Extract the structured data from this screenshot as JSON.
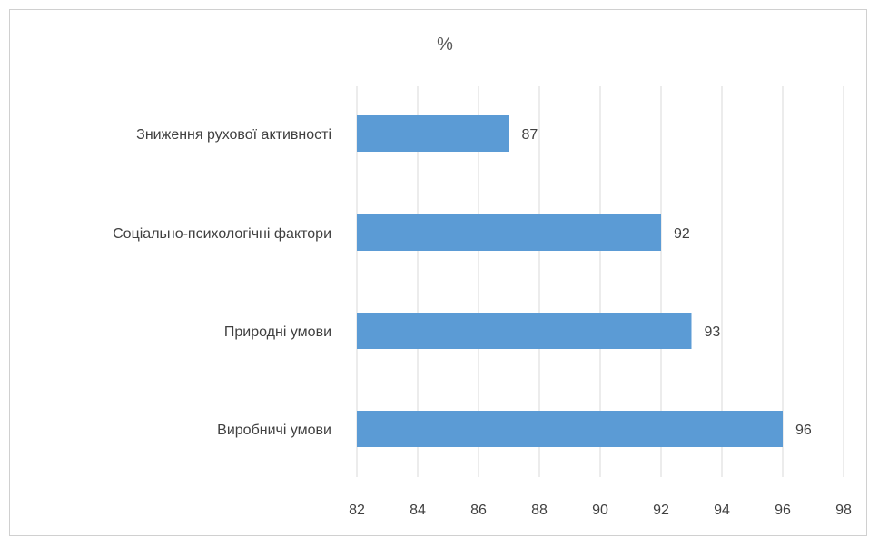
{
  "chart_data": {
    "type": "bar",
    "orientation": "horizontal",
    "title": "%",
    "categories": [
      "Зниження рухової активності",
      "Соціально-психологічні фактори",
      "Природні умови",
      "Виробничі умови"
    ],
    "values": [
      87,
      92,
      93,
      96
    ],
    "data_labels": [
      "87",
      "92",
      "93",
      "96"
    ],
    "xlim": [
      82,
      98
    ],
    "x_ticks": [
      "82",
      "84",
      "86",
      "88",
      "90",
      "92",
      "94",
      "96",
      "98"
    ],
    "grid": true,
    "legend": "none",
    "bar_color": "#5b9bd5",
    "gridline_color": "#d9d9d9"
  }
}
